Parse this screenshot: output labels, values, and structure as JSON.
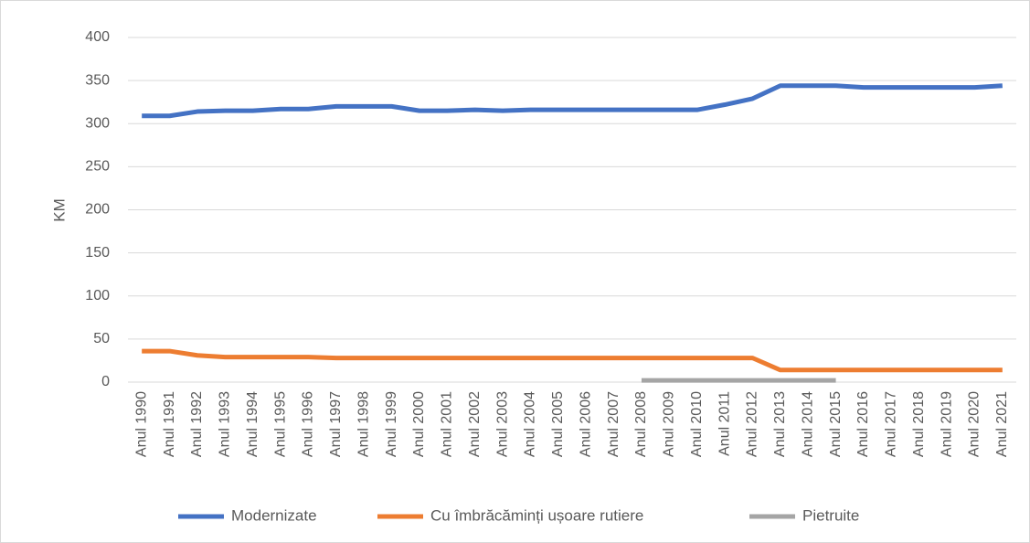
{
  "chart_data": {
    "type": "line",
    "y_label": "KM",
    "categories": [
      "Anul 1990",
      "Anul 1991",
      "Anul 1992",
      "Anul 1993",
      "Anul 1994",
      "Anul 1995",
      "Anul 1996",
      "Anul 1997",
      "Anul 1998",
      "Anul 1999",
      "Anul 2000",
      "Anul 2001",
      "Anul 2002",
      "Anul 2003",
      "Anul 2004",
      "Anul 2005",
      "Anul 2006",
      "Anul 2007",
      "Anul 2008",
      "Anul 2009",
      "Anul 2010",
      "Anul 2011",
      "Anul 2012",
      "Anul 2013",
      "Anul 2014",
      "Anul 2015",
      "Anul 2016",
      "Anul 2017",
      "Anul 2018",
      "Anul 2019",
      "Anul 2020",
      "Anul 2021"
    ],
    "series": [
      {
        "name": "Modernizate",
        "color": "#4472c4",
        "values": [
          309,
          309,
          314,
          315,
          315,
          317,
          317,
          320,
          320,
          320,
          315,
          315,
          316,
          315,
          316,
          316,
          316,
          316,
          316,
          316,
          316,
          322,
          329,
          344,
          344,
          344,
          342,
          342,
          342,
          342,
          342,
          344
        ]
      },
      {
        "name": "Cu îmbrăcăminți ușoare rutiere",
        "color": "#ed7d31",
        "values": [
          36,
          36,
          31,
          29,
          29,
          29,
          29,
          28,
          28,
          28,
          28,
          28,
          28,
          28,
          28,
          28,
          28,
          28,
          28,
          28,
          28,
          28,
          28,
          14,
          14,
          14,
          14,
          14,
          14,
          14,
          14,
          14
        ]
      },
      {
        "name": "Pietruite",
        "color": "#a5a5a5",
        "values": [
          null,
          null,
          null,
          null,
          null,
          null,
          null,
          null,
          null,
          null,
          null,
          null,
          null,
          null,
          null,
          null,
          null,
          null,
          2,
          2,
          2,
          2,
          2,
          2,
          2,
          2,
          null,
          null,
          null,
          null,
          null,
          null
        ]
      }
    ],
    "ylim": [
      0,
      400
    ],
    "yticks": [
      0,
      50,
      100,
      150,
      200,
      250,
      300,
      350,
      400
    ],
    "grid": true,
    "legend": "bottom"
  }
}
